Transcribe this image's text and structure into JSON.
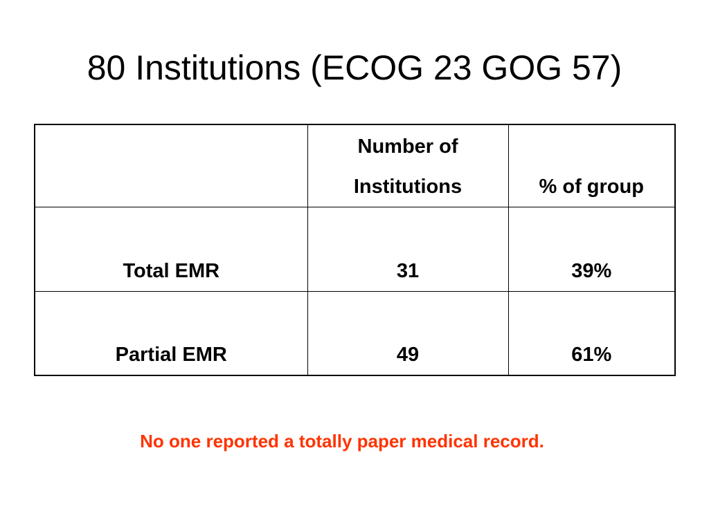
{
  "title": "80 Institutions (ECOG 23 GOG 57)",
  "table": {
    "headers": [
      "",
      "Number of\nInstitutions",
      "% of group"
    ],
    "rows": [
      [
        "Total EMR",
        "31",
        "39%"
      ],
      [
        "Partial EMR",
        "49",
        "61%"
      ]
    ]
  },
  "note": {
    "text": "No one reported a totally paper medical record.",
    "color": "#ff3300"
  },
  "colors": {
    "background": "#ffffff",
    "text": "#000000",
    "border": "#000000"
  }
}
